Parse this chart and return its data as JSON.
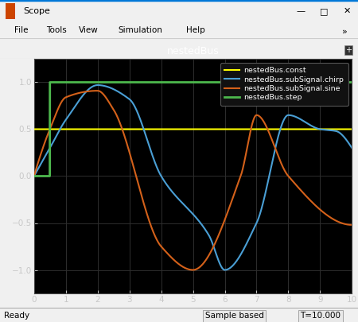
{
  "title": "nestedBus",
  "plot_bg": "#000000",
  "fig_bg": "#f0f0f0",
  "titlebar_bg": "#f0f0f0",
  "menubar_bg": "#f5f5f5",
  "toolbar_bg": "#f0f0f0",
  "statusbar_bg": "#f0f0f0",
  "xlim": [
    0,
    10
  ],
  "ylim": [
    -1.25,
    1.25
  ],
  "xticks": [
    0,
    1,
    2,
    3,
    4,
    5,
    6,
    7,
    8,
    9,
    10
  ],
  "yticks": [
    -1,
    -0.5,
    0,
    0.5,
    1
  ],
  "const_value": 0.5,
  "const_color": "#ffff00",
  "chirp_color": "#4a9fd5",
  "sine_color": "#d4611a",
  "step_color": "#4db84d",
  "legend_labels": [
    "nestedBus.const",
    "nestedBus.subSignal.chirp",
    "nestedBus.subSignal.sine",
    "nestedBus.step"
  ],
  "window_title": "Scope",
  "menu_items": [
    "File",
    "Tools",
    "View",
    "Simulation",
    "Help"
  ],
  "status_left": "Ready",
  "status_mid": "Sample based",
  "status_right": "T=10.000",
  "title_color": "#ffffff",
  "tick_color": "#c8c8c8",
  "grid_color": "#2e2e2e",
  "legend_bg": "#111111",
  "legend_ec": "#555555",
  "legend_text_color": "#ffffff",
  "border_color": "#0078d7",
  "sine_keypoints_t": [
    0,
    0.5,
    1.0,
    2.0,
    2.5,
    4.0,
    5.0,
    6.5,
    7.0,
    8.0,
    10.0
  ],
  "sine_keypoints_y": [
    0,
    0.5,
    0.84,
    0.91,
    0.71,
    -0.75,
    -1.0,
    0.0,
    0.65,
    0.0,
    -0.52
  ],
  "chirp_keypoints_t": [
    0,
    0.5,
    1.0,
    2.0,
    3.0,
    4.0,
    5.5,
    6.0,
    7.0,
    8.0,
    9.0,
    9.5,
    10.0
  ],
  "chirp_keypoints_y": [
    0,
    0.3,
    0.6,
    0.97,
    0.82,
    0.0,
    -0.63,
    -1.0,
    -0.5,
    0.65,
    0.5,
    0.48,
    0.3
  ],
  "step_keypoints_t": [
    0,
    0.0,
    0.5,
    10.0
  ],
  "step_keypoints_y": [
    0,
    0.0,
    1.0,
    1.0
  ]
}
